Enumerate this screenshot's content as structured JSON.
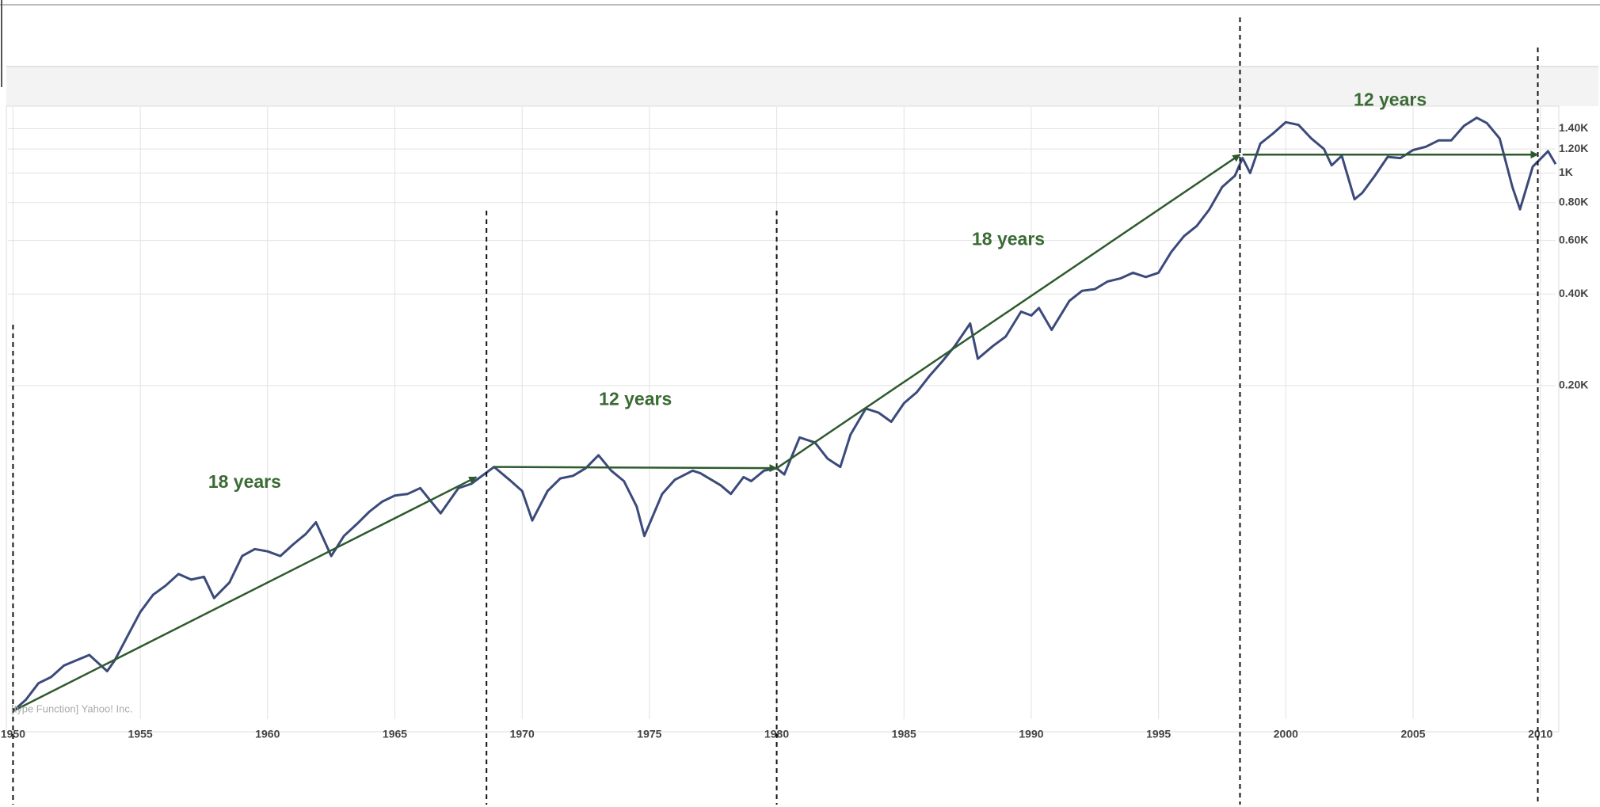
{
  "chart_data": {
    "type": "line",
    "log_y": true,
    "grid": true,
    "source": "[type Function] Yahoo! Inc.",
    "x": [
      1950.0,
      1950.5,
      1951.0,
      1951.5,
      1952.0,
      1952.5,
      1953.0,
      1953.7,
      1954.0,
      1954.5,
      1955.0,
      1955.5,
      1956.0,
      1956.5,
      1957.0,
      1957.5,
      1957.9,
      1958.5,
      1959.0,
      1959.5,
      1960.0,
      1960.5,
      1961.0,
      1961.5,
      1961.9,
      1962.5,
      1963.0,
      1963.5,
      1964.0,
      1964.5,
      1965.0,
      1965.5,
      1966.0,
      1966.8,
      1967.5,
      1968.0,
      1968.9,
      1969.5,
      1970.0,
      1970.4,
      1971.0,
      1971.5,
      1972.0,
      1972.5,
      1973.0,
      1973.5,
      1974.0,
      1974.5,
      1974.8,
      1975.5,
      1976.0,
      1976.7,
      1977.0,
      1977.8,
      1978.2,
      1978.7,
      1979.0,
      1979.5,
      1980.0,
      1980.3,
      1980.9,
      1981.5,
      1982.0,
      1982.5,
      1982.9,
      1983.5,
      1984.0,
      1984.5,
      1985.0,
      1985.5,
      1986.0,
      1986.5,
      1987.0,
      1987.6,
      1987.9,
      1988.5,
      1989.0,
      1989.6,
      1990.0,
      1990.3,
      1990.8,
      1991.5,
      1992.0,
      1992.5,
      1993.0,
      1993.5,
      1994.0,
      1994.5,
      1995.0,
      1995.5,
      1996.0,
      1996.5,
      1997.0,
      1997.5,
      1998.0,
      1998.3,
      1998.6,
      1999.0,
      1999.5,
      2000.0,
      2000.5,
      2001.0,
      2001.5,
      2001.8,
      2002.2,
      2002.7,
      2003.0,
      2003.5,
      2004.0,
      2004.5,
      2005.0,
      2005.5,
      2006.0,
      2006.5,
      2007.0,
      2007.5,
      2007.9,
      2008.4,
      2008.9,
      2009.2,
      2009.7,
      2010.3,
      2010.6
    ],
    "series": [
      {
        "color": "#3b4a7a",
        "values": [
          17,
          18.5,
          21,
          22,
          24,
          25,
          26,
          23,
          25,
          30,
          36,
          41,
          44,
          48,
          46,
          47,
          40,
          45,
          55,
          58,
          57,
          55,
          60,
          65,
          71,
          55,
          64,
          70,
          77,
          83,
          87,
          88,
          92,
          76,
          92,
          95,
          108,
          98,
          90,
          72,
          90,
          99,
          101,
          107,
          118,
          105,
          97,
          80,
          64,
          88,
          98,
          105,
          103,
          94,
          88,
          100,
          97,
          105,
          107,
          102,
          135,
          130,
          115,
          108,
          138,
          168,
          163,
          152,
          175,
          190,
          215,
          240,
          270,
          320,
          245,
          270,
          290,
          350,
          340,
          360,
          305,
          380,
          410,
          415,
          440,
          450,
          470,
          455,
          470,
          550,
          620,
          670,
          760,
          900,
          980,
          1120,
          1000,
          1250,
          1350,
          1470,
          1440,
          1300,
          1200,
          1060,
          1140,
          820,
          860,
          980,
          1130,
          1120,
          1190,
          1220,
          1280,
          1280,
          1430,
          1520,
          1460,
          1300,
          900,
          760,
          1050,
          1180,
          1070
        ]
      }
    ],
    "xlim": [
      1949.8,
      2010.6
    ],
    "xticks": [
      1950,
      1955,
      1960,
      1965,
      1970,
      1975,
      1980,
      1985,
      1990,
      1995,
      2000,
      2005,
      2010
    ],
    "ylim": [
      16,
      1650
    ],
    "yticks": [
      {
        "value": 200,
        "label": "0.20K"
      },
      {
        "value": 400,
        "label": "0.40K"
      },
      {
        "value": 600,
        "label": "0.60K"
      },
      {
        "value": 800,
        "label": "0.80K"
      },
      {
        "value": 1000,
        "label": "1K"
      },
      {
        "value": 1200,
        "label": "1.20K"
      },
      {
        "value": 1400,
        "label": "1.40K"
      }
    ],
    "markers": [
      1950,
      1968.6,
      1980,
      1998.2,
      2009.9
    ],
    "annotations": [
      {
        "text": "18 years",
        "x": [
          1950,
          1968.2
        ],
        "y": [
          17,
          100
        ]
      },
      {
        "text": "12 years",
        "x": [
          1968.9,
          1980
        ],
        "y": [
          108,
          107
        ]
      },
      {
        "text": "18 years",
        "x": [
          1980,
          1998.2
        ],
        "y": [
          107,
          1150
        ]
      },
      {
        "text": "12 years",
        "x": [
          1998.3,
          2009.9
        ],
        "y": [
          1150,
          1150
        ]
      }
    ]
  }
}
